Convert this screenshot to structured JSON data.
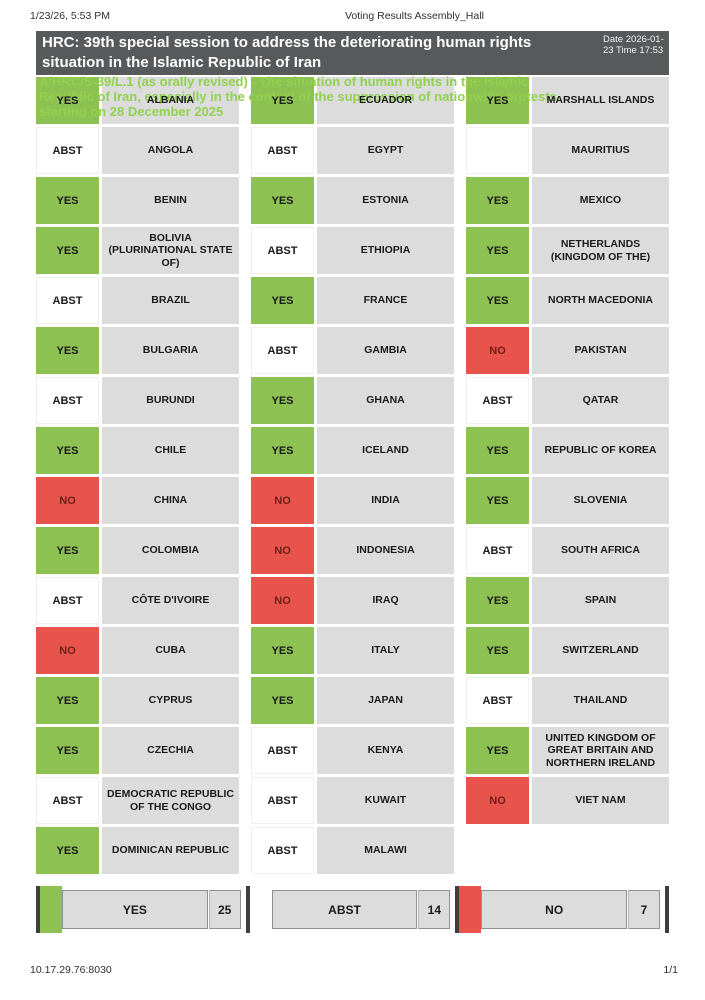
{
  "meta": {
    "datetime": "1/23/26, 5:53 PM",
    "document_title": "Voting Results Assembly_Hall"
  },
  "header": {
    "session_title": "HRC: 39th special session to address the deteriorating human rights situation in the Islamic Republic of Iran",
    "date_time": "Date 2026-01-23 Time 17:53"
  },
  "resolution": {
    "lines": [
      "A/HRC/S-39/L.1 (as orally revised) - The situation of human rights in the Islamic",
      "Republic of Iran, especially in the context of the suppression of nationwide protests",
      "starting on 28 December 2025"
    ]
  },
  "table": {
    "rows": [
      [
        {
          "vote": "YES",
          "country": "ALBANIA"
        },
        {
          "vote": "YES",
          "country": "ECUADOR"
        },
        {
          "vote": "YES",
          "country": "MARSHALL ISLANDS"
        }
      ],
      [
        {
          "vote": "ABST",
          "country": "ANGOLA"
        },
        {
          "vote": "ABST",
          "country": "EGYPT"
        },
        {
          "vote": "",
          "country": "MAURITIUS"
        }
      ],
      [
        {
          "vote": "YES",
          "country": "BENIN"
        },
        {
          "vote": "YES",
          "country": "ESTONIA"
        },
        {
          "vote": "YES",
          "country": "MEXICO"
        }
      ],
      [
        {
          "vote": "YES",
          "country": "BOLIVIA (PLURINATIONAL STATE OF)"
        },
        {
          "vote": "ABST",
          "country": "ETHIOPIA"
        },
        {
          "vote": "YES",
          "country": "NETHERLANDS (KINGDOM OF THE)"
        }
      ],
      [
        {
          "vote": "ABST",
          "country": "BRAZIL"
        },
        {
          "vote": "YES",
          "country": "FRANCE"
        },
        {
          "vote": "YES",
          "country": "NORTH MACEDONIA"
        }
      ],
      [
        {
          "vote": "YES",
          "country": "BULGARIA"
        },
        {
          "vote": "ABST",
          "country": "GAMBIA"
        },
        {
          "vote": "NO",
          "country": "PAKISTAN"
        }
      ],
      [
        {
          "vote": "ABST",
          "country": "BURUNDI"
        },
        {
          "vote": "YES",
          "country": "GHANA"
        },
        {
          "vote": "ABST",
          "country": "QATAR"
        }
      ],
      [
        {
          "vote": "YES",
          "country": "CHILE"
        },
        {
          "vote": "YES",
          "country": "ICELAND"
        },
        {
          "vote": "YES",
          "country": "REPUBLIC OF KOREA"
        }
      ],
      [
        {
          "vote": "NO",
          "country": "CHINA"
        },
        {
          "vote": "NO",
          "country": "INDIA"
        },
        {
          "vote": "YES",
          "country": "SLOVENIA"
        }
      ],
      [
        {
          "vote": "YES",
          "country": "COLOMBIA"
        },
        {
          "vote": "NO",
          "country": "INDONESIA"
        },
        {
          "vote": "ABST",
          "country": "SOUTH AFRICA"
        }
      ],
      [
        {
          "vote": "ABST",
          "country": "CÔTE D'IVOIRE"
        },
        {
          "vote": "NO",
          "country": "IRAQ"
        },
        {
          "vote": "YES",
          "country": "SPAIN"
        }
      ],
      [
        {
          "vote": "NO",
          "country": "CUBA"
        },
        {
          "vote": "YES",
          "country": "ITALY"
        },
        {
          "vote": "YES",
          "country": "SWITZERLAND"
        }
      ],
      [
        {
          "vote": "YES",
          "country": "CYPRUS"
        },
        {
          "vote": "YES",
          "country": "JAPAN"
        },
        {
          "vote": "ABST",
          "country": "THAILAND"
        }
      ],
      [
        {
          "vote": "YES",
          "country": "CZECHIA"
        },
        {
          "vote": "ABST",
          "country": "KENYA"
        },
        {
          "vote": "YES",
          "country": "UNITED KINGDOM OF GREAT BRITAIN AND NORTHERN IRELAND"
        }
      ],
      [
        {
          "vote": "ABST",
          "country": "DEMOCRATIC REPUBLIC OF THE CONGO"
        },
        {
          "vote": "ABST",
          "country": "KUWAIT"
        },
        {
          "vote": "NO",
          "country": "VIET NAM"
        }
      ],
      [
        {
          "vote": "YES",
          "country": "DOMINICAN REPUBLIC"
        },
        {
          "vote": "ABST",
          "country": "MALAWI"
        },
        null
      ]
    ]
  },
  "summary": [
    {
      "label": "YES",
      "count": "25",
      "swatch": "#8dc152"
    },
    {
      "label": "ABST",
      "count": "14",
      "swatch": "#ffffff"
    },
    {
      "label": "NO",
      "count": "7",
      "swatch": "#e8544b"
    }
  ],
  "footer": {
    "address": "10.17.29.76:8030",
    "page": "1/1"
  },
  "colors": {
    "yes_green": "#8dc152",
    "no_red": "#e8544b",
    "cell_gray": "#dcdcdc",
    "header_dark": "#58595a",
    "resolution_green": "#92d050"
  }
}
